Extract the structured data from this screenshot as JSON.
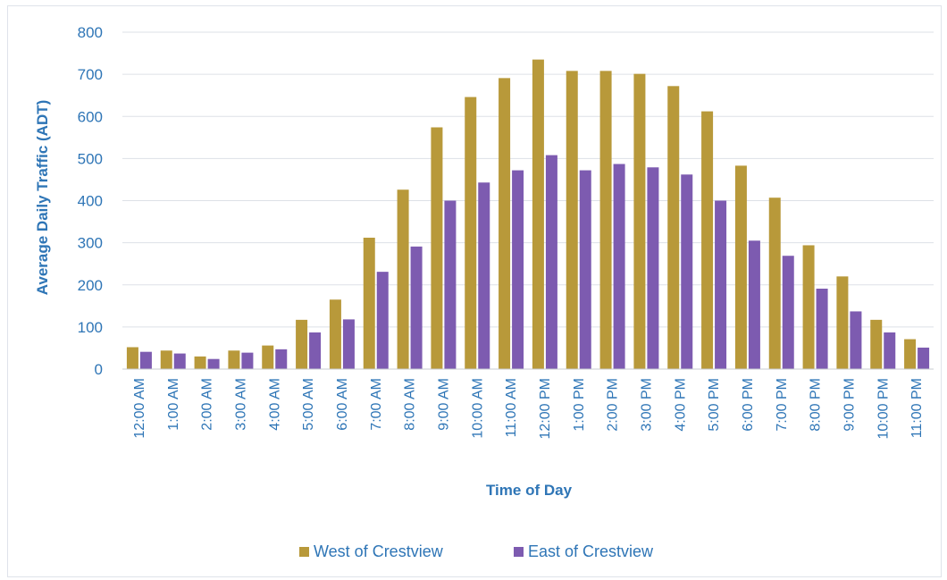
{
  "chart_data": {
    "type": "bar",
    "title": "",
    "xlabel": "Time of Day",
    "ylabel": "Average Daily Traffic (ADT)",
    "ylim": [
      0,
      800
    ],
    "yticks": [
      0,
      100,
      200,
      300,
      400,
      500,
      600,
      700,
      800
    ],
    "grid": true,
    "legend_position": "bottom",
    "categories": [
      "12:00 AM",
      "1:00 AM",
      "2:00 AM",
      "3:00 AM",
      "4:00 AM",
      "5:00 AM",
      "6:00 AM",
      "7:00 AM",
      "8:00 AM",
      "9:00 AM",
      "10:00 AM",
      "11:00 AM",
      "12:00 PM",
      "1:00 PM",
      "2:00 PM",
      "3:00 PM",
      "4:00 PM",
      "5:00 PM",
      "6:00 PM",
      "7:00 PM",
      "8:00 PM",
      "9:00 PM",
      "10:00 PM",
      "11:00 PM"
    ],
    "series": [
      {
        "name": "West of Crestview",
        "color": "#b8993a",
        "values": [
          52,
          44,
          30,
          44,
          56,
          117,
          165,
          312,
          426,
          574,
          646,
          691,
          735,
          708,
          708,
          701,
          672,
          612,
          483,
          407,
          294,
          220,
          117,
          71
        ]
      },
      {
        "name": "East of Crestview",
        "color": "#7d5bb0",
        "values": [
          41,
          37,
          24,
          39,
          47,
          87,
          118,
          231,
          291,
          400,
          443,
          472,
          508,
          472,
          487,
          479,
          462,
          400,
          305,
          269,
          191,
          137,
          87,
          51
        ]
      }
    ]
  }
}
